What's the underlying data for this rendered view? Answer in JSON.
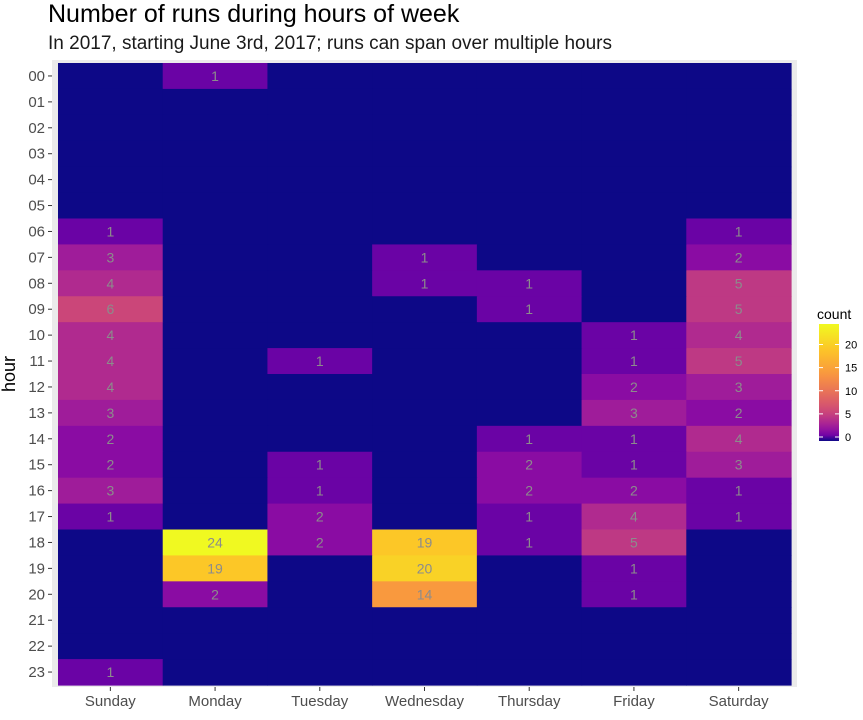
{
  "chart_data": {
    "type": "heatmap",
    "title": "Number of runs during hours of week",
    "subtitle": "In 2017, starting June 3rd, 2017; runs can span over multiple hours",
    "xlabel": "",
    "ylabel": "hour",
    "x_categories": [
      "Sunday",
      "Monday",
      "Tuesday",
      "Wednesday",
      "Thursday",
      "Friday",
      "Saturday"
    ],
    "y_categories": [
      "00",
      "01",
      "02",
      "03",
      "04",
      "05",
      "06",
      "07",
      "08",
      "09",
      "10",
      "11",
      "12",
      "13",
      "14",
      "15",
      "16",
      "17",
      "18",
      "19",
      "20",
      "21",
      "22",
      "23"
    ],
    "values": [
      [
        0,
        1,
        0,
        0,
        0,
        0,
        0
      ],
      [
        0,
        0,
        0,
        0,
        0,
        0,
        0
      ],
      [
        0,
        0,
        0,
        0,
        0,
        0,
        0
      ],
      [
        0,
        0,
        0,
        0,
        0,
        0,
        0
      ],
      [
        0,
        0,
        0,
        0,
        0,
        0,
        0
      ],
      [
        0,
        0,
        0,
        0,
        0,
        0,
        0
      ],
      [
        1,
        0,
        0,
        0,
        0,
        0,
        1
      ],
      [
        3,
        0,
        0,
        1,
        0,
        0,
        2
      ],
      [
        4,
        0,
        0,
        1,
        1,
        0,
        5
      ],
      [
        6,
        0,
        0,
        0,
        1,
        0,
        5
      ],
      [
        4,
        0,
        0,
        0,
        0,
        1,
        4
      ],
      [
        4,
        0,
        1,
        0,
        0,
        1,
        5
      ],
      [
        4,
        0,
        0,
        0,
        0,
        2,
        3
      ],
      [
        3,
        0,
        0,
        0,
        0,
        3,
        2
      ],
      [
        2,
        0,
        0,
        0,
        1,
        1,
        4
      ],
      [
        2,
        0,
        1,
        0,
        2,
        1,
        3
      ],
      [
        3,
        0,
        1,
        0,
        2,
        2,
        1
      ],
      [
        1,
        0,
        2,
        0,
        1,
        4,
        1
      ],
      [
        0,
        24,
        2,
        19,
        1,
        5,
        0
      ],
      [
        0,
        19,
        0,
        20,
        0,
        1,
        0
      ],
      [
        0,
        2,
        0,
        14,
        0,
        1,
        0
      ],
      [
        0,
        0,
        0,
        0,
        0,
        0,
        0
      ],
      [
        0,
        0,
        0,
        0,
        0,
        0,
        0
      ],
      [
        1,
        0,
        0,
        0,
        0,
        0,
        0
      ]
    ],
    "legend": {
      "title": "count",
      "ticks": [
        0,
        5,
        10,
        15,
        20
      ],
      "range": [
        0,
        24
      ],
      "colormap": "plasma (sqrt scale)"
    },
    "background_color": "#ebebeb",
    "empty_cell_color": "#0d0887"
  }
}
